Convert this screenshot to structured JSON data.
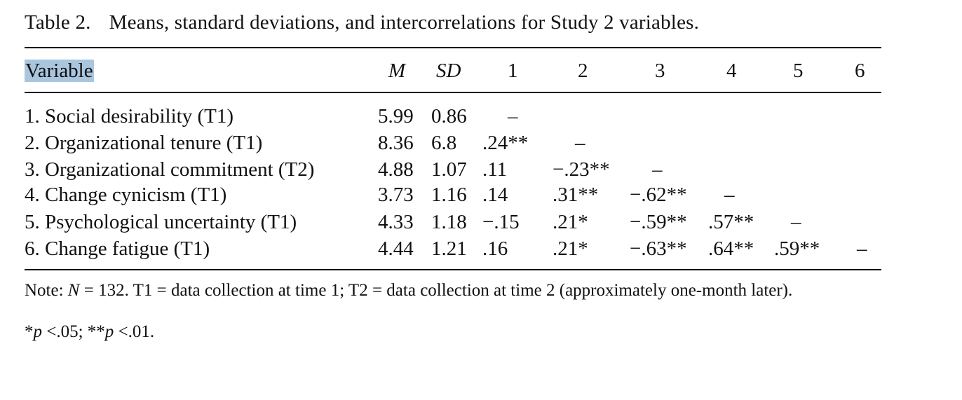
{
  "caption": {
    "number": "Table 2.",
    "title": "Means, standard deviations, and intercorrelations for Study 2 variables."
  },
  "header": {
    "variable": "Variable",
    "m": "M",
    "sd": "SD",
    "c1": "1",
    "c2": "2",
    "c3": "3",
    "c4": "4",
    "c5": "5",
    "c6": "6"
  },
  "rows": [
    {
      "variable": "1. Social desirability (T1)",
      "m": "5.99",
      "sd": "0.86",
      "c1": "–",
      "c2": "",
      "c3": "",
      "c4": "",
      "c5": "",
      "c6": ""
    },
    {
      "variable": "2. Organizational tenure (T1)",
      "m": "8.36",
      "sd": "6.8",
      "c1": ".24**",
      "c2": "–",
      "c3": "",
      "c4": "",
      "c5": "",
      "c6": ""
    },
    {
      "variable": "3. Organizational commitment (T2)",
      "m": "4.88",
      "sd": "1.07",
      "c1": ".11",
      "c2": "−.23**",
      "c3": "–",
      "c4": "",
      "c5": "",
      "c6": ""
    },
    {
      "variable": "4. Change cynicism (T1)",
      "m": "3.73",
      "sd": "1.16",
      "c1": ".14",
      "c2": ".31**",
      "c3": "−.62**",
      "c4": "–",
      "c5": "",
      "c6": ""
    },
    {
      "variable": "5. Psychological uncertainty (T1)",
      "m": "4.33",
      "sd": "1.18",
      "c1": "−.15",
      "c2": ".21*",
      "c3": "−.59**",
      "c4": ".57**",
      "c5": "–",
      "c6": ""
    },
    {
      "variable": "6. Change fatigue (T1)",
      "m": "4.44",
      "sd": "1.21",
      "c1": ".16",
      "c2": ".21*",
      "c3": "−.63**",
      "c4": ".64**",
      "c5": ".59**",
      "c6": "–"
    }
  ],
  "note": {
    "main": "Note: N = 132. T1 = data collection at time 1; T2 = data collection at time 2 (approximately one-month later).",
    "significance": "*p <.05; **p <.01."
  }
}
